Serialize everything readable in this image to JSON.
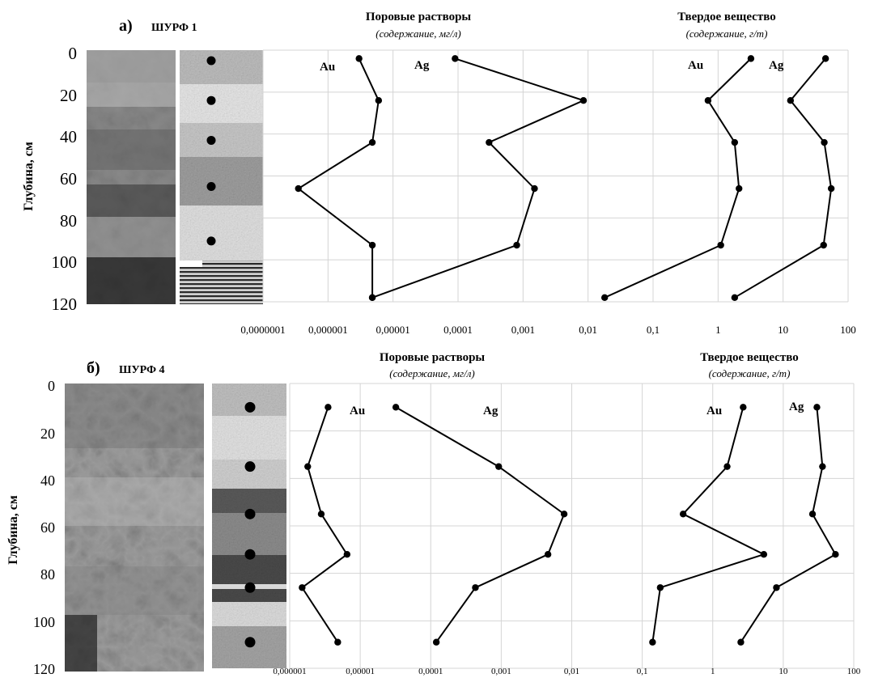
{
  "panels": [
    {
      "letter": "а)",
      "pit": "ШУРФ 1",
      "ylabel": "Глубина, см",
      "yticks": [
        "0",
        "20",
        "40",
        "60",
        "80",
        "100",
        "120"
      ],
      "xticks": [
        "0,0000001",
        "0,000001",
        "0,00001",
        "0,0001",
        "0,001",
        "0,01",
        "0,1",
        "1",
        "10",
        "100"
      ],
      "pore_title": "Поровые растворы",
      "pore_subtitle": "(содержание, мг/л)",
      "solid_title": "Твердое вещество",
      "solid_subtitle": "(содержание, г/т)"
    },
    {
      "letter": "б)",
      "pit": "ШУРФ 4",
      "ylabel": "Глубина, см",
      "yticks": [
        "0",
        "20",
        "40",
        "60",
        "80",
        "100",
        "120"
      ],
      "xticks": [
        "0,000001",
        "0,00001",
        "0,0001",
        "0,001",
        "0,01",
        "0,1",
        "1",
        "10",
        "100"
      ],
      "pore_title": "Поровые растворы",
      "pore_subtitle": "(содержание, мг/л)",
      "solid_title": "Твердое вещество",
      "solid_subtitle": "(содержание, г/т)"
    }
  ],
  "chart_data": [
    {
      "type": "line",
      "panel": "а) ШУРФ 1",
      "x_scale": "log",
      "xlim": [
        1e-07,
        100
      ],
      "ylim": [
        0,
        120
      ],
      "y_inverted": true,
      "grid": true,
      "series": [
        {
          "name": "Au",
          "group": "Поровые растворы",
          "depth": [
            4,
            24,
            44,
            66,
            93,
            118
          ],
          "values": [
            3e-06,
            6e-06,
            4.8e-06,
            3.5e-07,
            4.8e-06,
            4.8e-06
          ]
        },
        {
          "name": "Ag",
          "group": "Поровые растворы",
          "depth": [
            4,
            24,
            44,
            66,
            93,
            118
          ],
          "values": [
            9e-05,
            0.0085,
            0.0003,
            0.0015,
            0.0008,
            4.8e-06
          ]
        },
        {
          "name": "Au",
          "group": "Твердое вещество",
          "depth": [
            4,
            24,
            44,
            66,
            93,
            118
          ],
          "values": [
            3.2,
            0.7,
            1.8,
            2.1,
            1.1,
            0.018
          ]
        },
        {
          "name": "Ag",
          "group": "Твердое вещество",
          "depth": [
            4,
            24,
            44,
            66,
            93,
            118
          ],
          "values": [
            45,
            13,
            43,
            55,
            42,
            1.8
          ]
        }
      ]
    },
    {
      "type": "line",
      "panel": "б) ШУРФ 4",
      "x_scale": "log",
      "xlim": [
        1e-06,
        100
      ],
      "ylim": [
        0,
        120
      ],
      "y_inverted": true,
      "grid": true,
      "series": [
        {
          "name": "Au",
          "group": "Поровые растворы",
          "depth": [
            10,
            35,
            55,
            72,
            86,
            109
          ],
          "values": [
            3.5e-06,
            1.8e-06,
            2.8e-06,
            6.5e-06,
            1.5e-06,
            4.8e-06
          ]
        },
        {
          "name": "Ag",
          "group": "Поровые растворы",
          "depth": [
            10,
            35,
            55,
            72,
            86,
            109
          ],
          "values": [
            3.2e-05,
            0.00092,
            0.0078,
            0.0046,
            0.00043,
            0.00012
          ]
        },
        {
          "name": "Au",
          "group": "Твердое вещество",
          "depth": [
            10,
            35,
            55,
            72,
            86,
            109
          ],
          "values": [
            2.7,
            1.6,
            0.38,
            5.3,
            0.18,
            0.14
          ]
        },
        {
          "name": "Ag",
          "group": "Твердое вещество",
          "depth": [
            10,
            35,
            55,
            72,
            86,
            109
          ],
          "values": [
            30,
            36,
            26,
            55,
            8,
            2.5
          ]
        }
      ]
    }
  ],
  "sample_points": [
    {
      "panel": "а)",
      "depths": [
        5,
        24,
        43,
        65,
        91
      ]
    },
    {
      "panel": "б)",
      "depths": [
        10,
        35,
        55,
        72,
        86,
        109
      ]
    }
  ]
}
